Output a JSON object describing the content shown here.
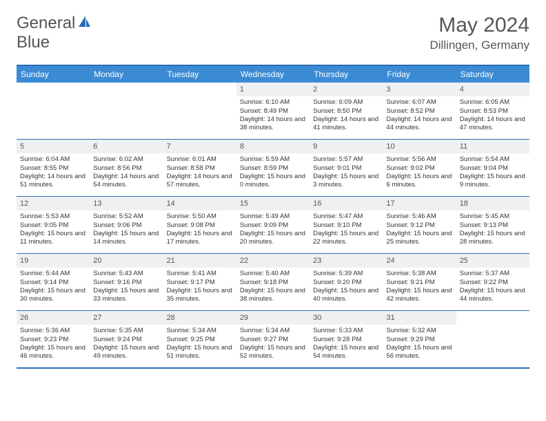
{
  "logo": {
    "text1": "General",
    "text2": "Blue"
  },
  "title": "May 2024",
  "location": "Dillingen, Germany",
  "colors": {
    "header_bg": "#3b8bd4",
    "border": "#2a6db5",
    "daynum_bg": "#eef0f2",
    "text": "#555555",
    "logo_accent": "#2a6db5"
  },
  "weekdays": [
    "Sunday",
    "Monday",
    "Tuesday",
    "Wednesday",
    "Thursday",
    "Friday",
    "Saturday"
  ],
  "weeks": [
    [
      null,
      null,
      null,
      {
        "n": "1",
        "sr": "6:10 AM",
        "ss": "8:49 PM",
        "dl": "14 hours and 38 minutes."
      },
      {
        "n": "2",
        "sr": "6:09 AM",
        "ss": "8:50 PM",
        "dl": "14 hours and 41 minutes."
      },
      {
        "n": "3",
        "sr": "6:07 AM",
        "ss": "8:52 PM",
        "dl": "14 hours and 44 minutes."
      },
      {
        "n": "4",
        "sr": "6:05 AM",
        "ss": "8:53 PM",
        "dl": "14 hours and 47 minutes."
      }
    ],
    [
      {
        "n": "5",
        "sr": "6:04 AM",
        "ss": "8:55 PM",
        "dl": "14 hours and 51 minutes."
      },
      {
        "n": "6",
        "sr": "6:02 AM",
        "ss": "8:56 PM",
        "dl": "14 hours and 54 minutes."
      },
      {
        "n": "7",
        "sr": "6:01 AM",
        "ss": "8:58 PM",
        "dl": "14 hours and 57 minutes."
      },
      {
        "n": "8",
        "sr": "5:59 AM",
        "ss": "8:59 PM",
        "dl": "15 hours and 0 minutes."
      },
      {
        "n": "9",
        "sr": "5:57 AM",
        "ss": "9:01 PM",
        "dl": "15 hours and 3 minutes."
      },
      {
        "n": "10",
        "sr": "5:56 AM",
        "ss": "9:02 PM",
        "dl": "15 hours and 6 minutes."
      },
      {
        "n": "11",
        "sr": "5:54 AM",
        "ss": "9:04 PM",
        "dl": "15 hours and 9 minutes."
      }
    ],
    [
      {
        "n": "12",
        "sr": "5:53 AM",
        "ss": "9:05 PM",
        "dl": "15 hours and 11 minutes."
      },
      {
        "n": "13",
        "sr": "5:52 AM",
        "ss": "9:06 PM",
        "dl": "15 hours and 14 minutes."
      },
      {
        "n": "14",
        "sr": "5:50 AM",
        "ss": "9:08 PM",
        "dl": "15 hours and 17 minutes."
      },
      {
        "n": "15",
        "sr": "5:49 AM",
        "ss": "9:09 PM",
        "dl": "15 hours and 20 minutes."
      },
      {
        "n": "16",
        "sr": "5:47 AM",
        "ss": "9:10 PM",
        "dl": "15 hours and 22 minutes."
      },
      {
        "n": "17",
        "sr": "5:46 AM",
        "ss": "9:12 PM",
        "dl": "15 hours and 25 minutes."
      },
      {
        "n": "18",
        "sr": "5:45 AM",
        "ss": "9:13 PM",
        "dl": "15 hours and 28 minutes."
      }
    ],
    [
      {
        "n": "19",
        "sr": "5:44 AM",
        "ss": "9:14 PM",
        "dl": "15 hours and 30 minutes."
      },
      {
        "n": "20",
        "sr": "5:43 AM",
        "ss": "9:16 PM",
        "dl": "15 hours and 33 minutes."
      },
      {
        "n": "21",
        "sr": "5:41 AM",
        "ss": "9:17 PM",
        "dl": "15 hours and 35 minutes."
      },
      {
        "n": "22",
        "sr": "5:40 AM",
        "ss": "9:18 PM",
        "dl": "15 hours and 38 minutes."
      },
      {
        "n": "23",
        "sr": "5:39 AM",
        "ss": "9:20 PM",
        "dl": "15 hours and 40 minutes."
      },
      {
        "n": "24",
        "sr": "5:38 AM",
        "ss": "9:21 PM",
        "dl": "15 hours and 42 minutes."
      },
      {
        "n": "25",
        "sr": "5:37 AM",
        "ss": "9:22 PM",
        "dl": "15 hours and 44 minutes."
      }
    ],
    [
      {
        "n": "26",
        "sr": "5:36 AM",
        "ss": "9:23 PM",
        "dl": "15 hours and 46 minutes."
      },
      {
        "n": "27",
        "sr": "5:35 AM",
        "ss": "9:24 PM",
        "dl": "15 hours and 49 minutes."
      },
      {
        "n": "28",
        "sr": "5:34 AM",
        "ss": "9:25 PM",
        "dl": "15 hours and 51 minutes."
      },
      {
        "n": "29",
        "sr": "5:34 AM",
        "ss": "9:27 PM",
        "dl": "15 hours and 52 minutes."
      },
      {
        "n": "30",
        "sr": "5:33 AM",
        "ss": "9:28 PM",
        "dl": "15 hours and 54 minutes."
      },
      {
        "n": "31",
        "sr": "5:32 AM",
        "ss": "9:29 PM",
        "dl": "15 hours and 56 minutes."
      },
      null
    ]
  ],
  "labels": {
    "sunrise": "Sunrise: ",
    "sunset": "Sunset: ",
    "daylight": "Daylight: "
  }
}
